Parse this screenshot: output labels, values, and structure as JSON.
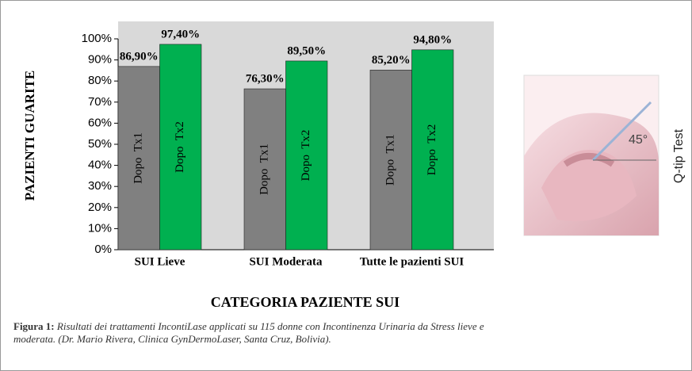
{
  "chart_data": {
    "type": "bar",
    "x_label": "CATEGORIA PAZIENTE SUI",
    "y_label": "PAZIENTI GUARITE",
    "categories": [
      "SUI Lieve",
      "SUI Moderata",
      "Tutte le pazienti SUI"
    ],
    "series": [
      {
        "name": "Dopo  Tx1",
        "color": "#808080",
        "values": [
          86.9,
          76.3,
          85.2
        ],
        "value_labels": [
          "86,90%",
          "76,30%",
          "85,20%"
        ]
      },
      {
        "name": "Dopo  Tx2",
        "color": "#00b050",
        "values": [
          97.4,
          89.5,
          94.8
        ],
        "value_labels": [
          "97,40%",
          "89,50%",
          "94,80%"
        ]
      }
    ],
    "ylim": [
      0,
      100
    ],
    "yticks": [
      {
        "value": 0,
        "label": "0%"
      },
      {
        "value": 10,
        "label": "10%"
      },
      {
        "value": 20,
        "label": "20%"
      },
      {
        "value": 30,
        "label": "30%"
      },
      {
        "value": 40,
        "label": "40%"
      },
      {
        "value": 50,
        "label": "50%"
      },
      {
        "value": 60,
        "label": "60%"
      },
      {
        "value": 70,
        "label": "70%"
      },
      {
        "value": 80,
        "label": "80%"
      },
      {
        "value": 90,
        "label": "90%"
      },
      {
        "value": 100,
        "label": "100%"
      }
    ],
    "grid": false
  },
  "image": {
    "label": "Q-tip Test",
    "angle": "45°"
  },
  "caption": {
    "label": "Figura 1:",
    "text": "Risultati dei trattamenti IncontiLase applicati su 115 donne con Incontinenza Urinaria da Stress lieve e moderata. (Dr. Mario Rivera, Clinica GynDermoLaser, Santa Cruz, Bolivia)."
  }
}
